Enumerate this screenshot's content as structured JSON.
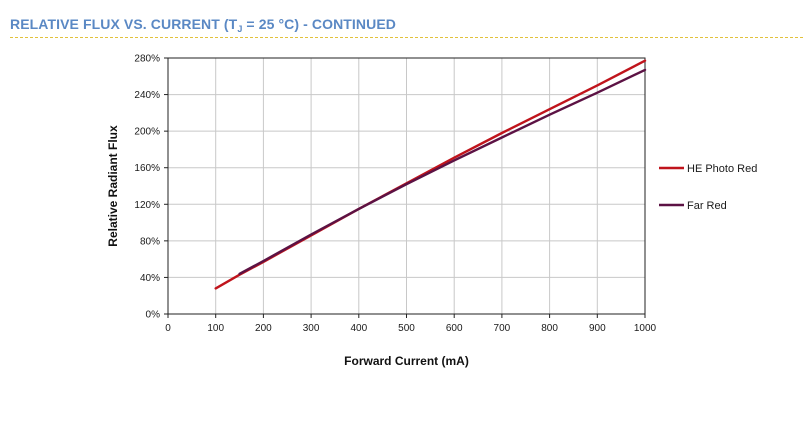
{
  "header": {
    "title_prefix": "RELATIVE FLUX VS. CURRENT (T",
    "title_sub": "J",
    "title_suffix": " = 25 °C) - CONTINUED"
  },
  "chart_data": {
    "type": "line",
    "xlabel": "Forward Current (mA)",
    "ylabel": "Relative Radiant Flux",
    "xlim": [
      0,
      1000
    ],
    "ylim": [
      0,
      280
    ],
    "xticks": [
      0,
      100,
      200,
      300,
      400,
      500,
      600,
      700,
      800,
      900,
      1000
    ],
    "yticks": [
      0,
      40,
      80,
      120,
      160,
      200,
      240,
      280
    ],
    "x_tick_labels": [
      "0",
      "100",
      "200",
      "300",
      "400",
      "500",
      "600",
      "700",
      "800",
      "900",
      "1000"
    ],
    "y_tick_labels": [
      "0%",
      "40%",
      "80%",
      "120%",
      "160%",
      "200%",
      "240%",
      "280%"
    ],
    "grid": true,
    "legend_position": "right",
    "series": [
      {
        "name": "HE Photo Red",
        "color": "#c0141c",
        "x": [
          100,
          150,
          200,
          300,
          400,
          500,
          600,
          700,
          800,
          900,
          1000
        ],
        "y": [
          28,
          43,
          57,
          86,
          115,
          143,
          171,
          198,
          224,
          250,
          277
        ]
      },
      {
        "name": "Far Red",
        "color": "#5c1244",
        "x": [
          150,
          200,
          300,
          400,
          500,
          600,
          700,
          800,
          900,
          1000
        ],
        "y": [
          44,
          58,
          87,
          115,
          142,
          168,
          193,
          218,
          242,
          267
        ]
      }
    ]
  }
}
